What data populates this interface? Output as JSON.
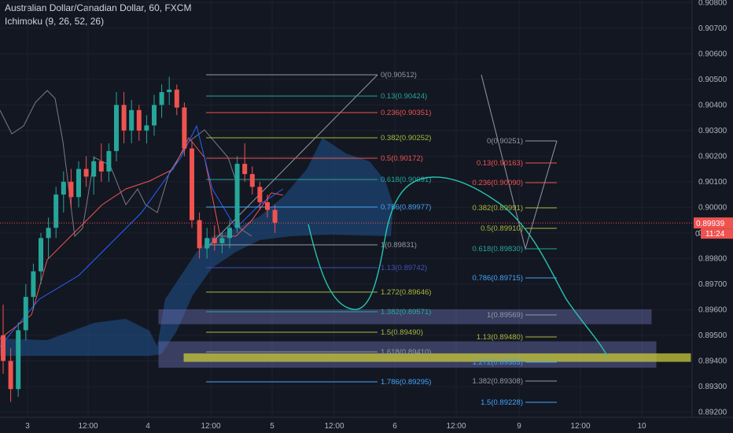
{
  "header": {
    "title": "Australian Dollar/Canadian Dollar, 60, FXCM",
    "indicator": "Ichimoku (9, 26, 52, 26)"
  },
  "colors": {
    "background": "#131722",
    "bull": "#26a69a",
    "bear": "#ef5350",
    "grid": "#1e222d",
    "cloud": "#1f4e86",
    "price_tag": "#ef5350",
    "timer_tag": "#ef5350"
  },
  "chart_data": {
    "type": "candlestick",
    "ylim": [
      0.8918,
      0.9081
    ],
    "y_ticks": [
      "0.90800",
      "0.90700",
      "0.90600",
      "0.90500",
      "0.90400",
      "0.90300",
      "0.90200",
      "0.90100",
      "0.90000",
      "0.89900",
      "0.89800",
      "0.89700",
      "0.89600",
      "0.89500",
      "0.89400",
      "0.89300",
      "0.89200"
    ],
    "x_ticks": [
      "3",
      "12:00",
      "4",
      "12:00",
      "5",
      "12:00",
      "6",
      "12:00",
      "9",
      "12:00",
      "10"
    ],
    "last_price": "0.89939",
    "countdown": "11:24",
    "axis_right_partial": "0",
    "fib_left": [
      {
        "label": "0(0.90512)",
        "color": "#9598a1"
      },
      {
        "label": "0.13(0.90424)",
        "color": "#26a69a"
      },
      {
        "label": "0.236(0.90351)",
        "color": "#ef5350"
      },
      {
        "label": "0.382(0.90252)",
        "color": "#a9b83a"
      },
      {
        "label": "0.5(0.90172)",
        "color": "#ef5350"
      },
      {
        "label": "0.618(0.90091)",
        "color": "#26a69a"
      },
      {
        "label": "0.786(0.89977)",
        "color": "#42a5f5"
      },
      {
        "label": "1(0.89831)",
        "color": "#9598a1"
      },
      {
        "label": "1.13(0.89742)",
        "color": "#3f51b5"
      },
      {
        "label": "1.272(0.89646)",
        "color": "#a9b83a"
      },
      {
        "label": "1.382(0.89571)",
        "color": "#26a69a"
      },
      {
        "label": "1.5(0.89490)",
        "color": "#a9b83a"
      },
      {
        "label": "1.618(0.89410)",
        "color": "#9598a1"
      },
      {
        "label": "1.786(0.89295)",
        "color": "#42a5f5"
      }
    ],
    "fib_right": [
      {
        "label": "0(0.90251)",
        "color": "#9598a1"
      },
      {
        "label": "0.13(0.90163)",
        "color": "#ef5350"
      },
      {
        "label": "0.236(0.90090)",
        "color": "#ef5350"
      },
      {
        "label": "0.382(0.89991)",
        "color": "#a9b83a"
      },
      {
        "label": "0.5(0.89910)",
        "color": "#a9b83a"
      },
      {
        "label": "0.618(0.89830)",
        "color": "#26a69a"
      },
      {
        "label": "0.786(0.89715)",
        "color": "#42a5f5"
      },
      {
        "label": "1(0.89569)",
        "color": "#9598a1"
      },
      {
        "label": "1.13(0.89480)",
        "color": "#a9b83a"
      },
      {
        "label": "1.272(0.89383)",
        "color": "#42a5f5"
      },
      {
        "label": "1.382(0.89308)",
        "color": "#9598a1"
      },
      {
        "label": "1.5(0.89228)",
        "color": "#42a5f5"
      }
    ],
    "candles": [
      [
        0.895,
        0.8962,
        0.8935,
        0.894
      ],
      [
        0.894,
        0.8945,
        0.8924,
        0.8929
      ],
      [
        0.8929,
        0.8955,
        0.8926,
        0.8952
      ],
      [
        0.8952,
        0.897,
        0.8948,
        0.8965
      ],
      [
        0.8965,
        0.8978,
        0.896,
        0.8975
      ],
      [
        0.8975,
        0.899,
        0.897,
        0.8988
      ],
      [
        0.8988,
        0.8996,
        0.898,
        0.8992
      ],
      [
        0.8992,
        0.9008,
        0.8988,
        0.9005
      ],
      [
        0.9005,
        0.9014,
        0.8998,
        0.901
      ],
      [
        0.901,
        0.9015,
        0.9,
        0.9004
      ],
      [
        0.9004,
        0.9018,
        0.9,
        0.9015
      ],
      [
        0.9015,
        0.902,
        0.9008,
        0.9012
      ],
      [
        0.9012,
        0.902,
        0.9005,
        0.9018
      ],
      [
        0.9018,
        0.9025,
        0.901,
        0.9014
      ],
      [
        0.9014,
        0.9025,
        0.901,
        0.9022
      ],
      [
        0.9022,
        0.9045,
        0.9018,
        0.904
      ],
      [
        0.904,
        0.9045,
        0.9025,
        0.903
      ],
      [
        0.903,
        0.9042,
        0.9025,
        0.9038
      ],
      [
        0.9038,
        0.904,
        0.9026,
        0.903
      ],
      [
        0.903,
        0.9036,
        0.9025,
        0.9032
      ],
      [
        0.9032,
        0.9044,
        0.9028,
        0.904
      ],
      [
        0.904,
        0.9048,
        0.9035,
        0.9045
      ],
      [
        0.9045,
        0.9051,
        0.904,
        0.9046
      ],
      [
        0.9046,
        0.9048,
        0.9036,
        0.9039
      ],
      [
        0.9039,
        0.9041,
        0.902,
        0.9023
      ],
      [
        0.9023,
        0.9026,
        0.8992,
        0.8995
      ],
      [
        0.8995,
        0.8998,
        0.898,
        0.8984
      ],
      [
        0.8984,
        0.8992,
        0.898,
        0.8988
      ],
      [
        0.8988,
        0.8993,
        0.8983,
        0.8986
      ],
      [
        0.8986,
        0.899,
        0.8982,
        0.8988
      ],
      [
        0.8988,
        0.8995,
        0.8984,
        0.8992
      ],
      [
        0.8992,
        0.902,
        0.899,
        0.9017
      ],
      [
        0.9017,
        0.9025,
        0.901,
        0.9013
      ],
      [
        0.9013,
        0.9016,
        0.9005,
        0.9008
      ],
      [
        0.9008,
        0.901,
        0.8999,
        0.9002
      ],
      [
        0.9002,
        0.9005,
        0.8996,
        0.8999
      ],
      [
        0.8999,
        0.9001,
        0.899,
        0.8994
      ]
    ],
    "wave_path_points": [
      [
        0.8995,
        0
      ],
      [
        0.8958,
        0.5
      ],
      [
        0.899,
        1
      ],
      [
        0.901,
        1.6
      ],
      [
        0.9008,
        2.2
      ],
      [
        0.8945,
        4.0
      ],
      [
        0.894,
        4.3
      ]
    ],
    "zones": [
      {
        "top": 0.896,
        "bottom": 0.89545,
        "color": "#6a6fae"
      },
      {
        "top": 0.89475,
        "bottom": 0.89375,
        "color": "#6a6fae"
      },
      {
        "top": 0.89428,
        "bottom": 0.89398,
        "color": "#c8c83a"
      }
    ]
  }
}
